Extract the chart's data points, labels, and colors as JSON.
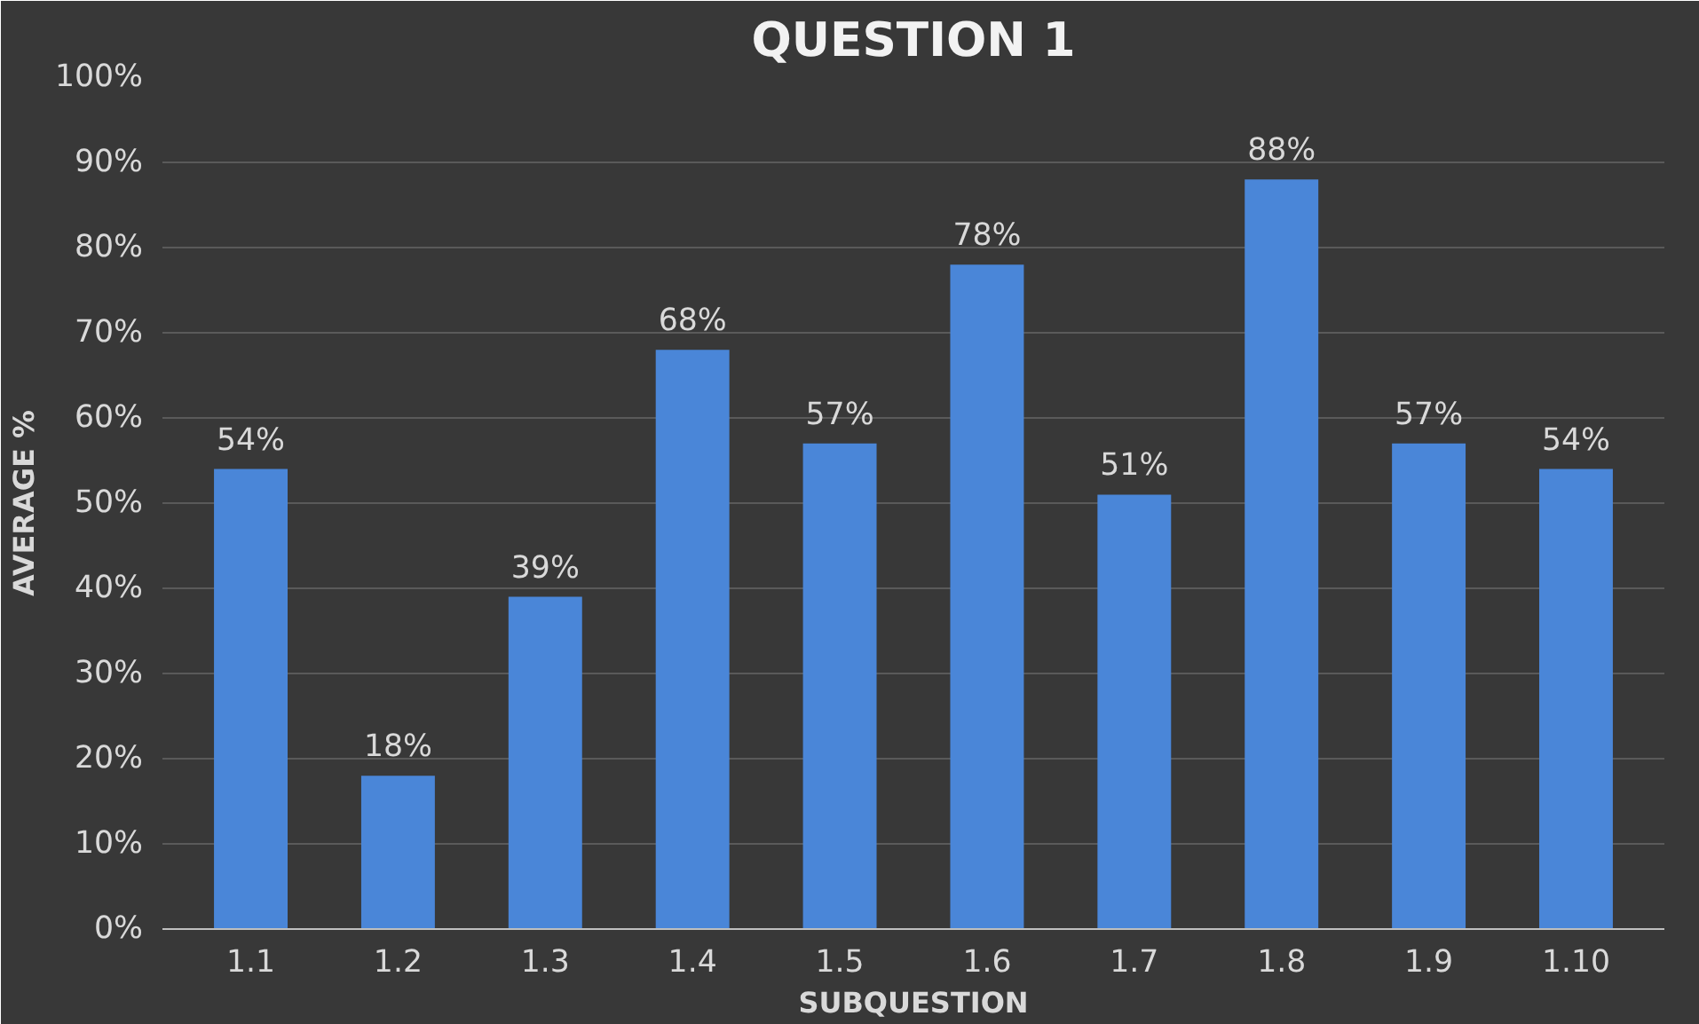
{
  "chart_data": {
    "type": "bar",
    "title": "QUESTION 1",
    "xlabel": "SUBQUESTION",
    "ylabel": "AVERAGE %",
    "categories": [
      "1.1",
      "1.2",
      "1.3",
      "1.4",
      "1.5",
      "1.6",
      "1.7",
      "1.8",
      "1.9",
      "1.10"
    ],
    "values": [
      54,
      18,
      39,
      68,
      57,
      78,
      51,
      88,
      57,
      54
    ],
    "value_labels": [
      "54%",
      "18%",
      "39%",
      "68%",
      "57%",
      "78%",
      "51%",
      "88%",
      "57%",
      "54%"
    ],
    "color": "#4a86d8",
    "ylim": [
      0,
      100
    ],
    "yticks": [
      {
        "value": 0,
        "label": "0%"
      },
      {
        "value": 10,
        "label": "10%"
      },
      {
        "value": 20,
        "label": "20%"
      },
      {
        "value": 30,
        "label": "30%"
      },
      {
        "value": 40,
        "label": "40%"
      },
      {
        "value": 50,
        "label": "50%"
      },
      {
        "value": 60,
        "label": "60%"
      },
      {
        "value": 70,
        "label": "70%"
      },
      {
        "value": 80,
        "label": "80%"
      },
      {
        "value": 90,
        "label": "90%"
      },
      {
        "value": 100,
        "label": "100%"
      }
    ],
    "grid": "y"
  }
}
